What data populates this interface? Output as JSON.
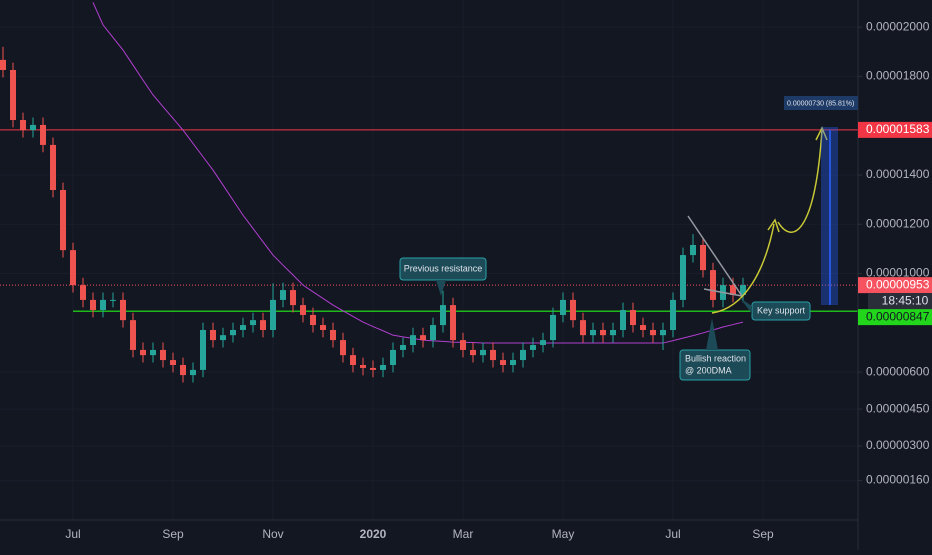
{
  "chart_data": {
    "type": "candlestick",
    "categories": [
      null,
      null,
      null,
      null,
      null,
      null,
      null,
      "Jul",
      null,
      null,
      null,
      null,
      null,
      null,
      null,
      null,
      null,
      "Sep",
      null,
      null,
      null,
      null,
      null,
      null,
      null,
      null,
      null,
      "Nov",
      null,
      null,
      null,
      null,
      null,
      null,
      null,
      null,
      null,
      "2020",
      null,
      null,
      null,
      null,
      null,
      null,
      null,
      null,
      "Mar",
      null,
      null,
      null,
      null,
      null,
      null,
      null,
      null,
      null,
      "May",
      null,
      null,
      null,
      null,
      null,
      null,
      null,
      null,
      null,
      null,
      "Jul",
      null,
      null,
      null,
      null,
      null,
      null,
      null,
      null,
      "Sep",
      null,
      null,
      null,
      null,
      null,
      null,
      null,
      null,
      null
    ],
    "open": [
      1.867e-05,
      1.826e-05,
      1.623e-05,
      1.582e-05,
      1.603e-05,
      1.522e-05,
      1.339e-05,
      1.095e-05,
      9.53e-06,
      8.93e-06,
      8.52e-06,
      8.93e-06,
      8.93e-06,
      8.11e-06,
      6.9e-06,
      6.69e-06,
      6.9e-06,
      6.49e-06,
      6.29e-06,
      5.88e-06,
      6.09e-06,
      7.71e-06,
      7.3e-06,
      7.5e-06,
      7.71e-06,
      7.91e-06,
      8.11e-06,
      7.71e-06,
      8.93e-06,
      9.33e-06,
      8.72e-06,
      8.32e-06,
      7.91e-06,
      7.71e-06,
      7.3e-06,
      6.69e-06,
      6.29e-06,
      6.17e-06,
      6.09e-06,
      6.29e-06,
      6.9e-06,
      7.1e-06,
      7.5e-06,
      7.3e-06,
      7.91e-06,
      8.72e-06,
      7.3e-06,
      6.9e-06,
      6.69e-06,
      6.9e-06,
      6.49e-06,
      6.29e-06,
      6.49e-06,
      6.9e-06,
      7.1e-06,
      7.3e-06,
      8.32e-06,
      8.93e-06,
      8.11e-06,
      7.5e-06,
      7.71e-06,
      7.5e-06,
      7.71e-06,
      8.52e-06,
      7.91e-06,
      7.71e-06,
      7.5e-06,
      7.71e-06,
      8.93e-06,
      1.075e-05,
      1.116e-05,
      1.014e-05,
      8.93e-06,
      9.53e-06,
      9.13e-06,
      null,
      null,
      null,
      null,
      null,
      null,
      null,
      null,
      null,
      null,
      null
    ],
    "high": [
      1.92e-05,
      1.856e-05,
      1.653e-05,
      1.633e-05,
      1.633e-05,
      1.552e-05,
      1.369e-05,
      1.125e-05,
      9.83e-06,
      9.23e-06,
      9.23e-06,
      9.23e-06,
      9.23e-06,
      8.41e-06,
      7.2e-06,
      7.2e-06,
      7.2e-06,
      6.79e-06,
      6.59e-06,
      6.39e-06,
      8.01e-06,
      8.01e-06,
      7.8e-06,
      8.01e-06,
      8.21e-06,
      8.41e-06,
      8.41e-06,
      9.6e-06,
      9.63e-06,
      9.63e-06,
      9.02e-06,
      8.62e-06,
      8.21e-06,
      8.01e-06,
      7.6e-06,
      6.99e-06,
      6.59e-06,
      6.47e-06,
      6.59e-06,
      7.2e-06,
      7.4e-06,
      7.8e-06,
      7.8e-06,
      8.21e-06,
      9.3e-06,
      9.02e-06,
      7.6e-06,
      7.2e-06,
      7.2e-06,
      7.2e-06,
      6.79e-06,
      6.79e-06,
      7.2e-06,
      7.4e-06,
      7.6e-06,
      8.62e-06,
      9.23e-06,
      9.23e-06,
      8.41e-06,
      8.01e-06,
      8.01e-06,
      8.01e-06,
      8.82e-06,
      8.82e-06,
      8.21e-06,
      8.01e-06,
      8.01e-06,
      9.23e-06,
      1.105e-05,
      1.16e-05,
      1.146e-05,
      1.044e-05,
      9.83e-06,
      9.83e-06,
      9.83e-06,
      null,
      null,
      null,
      null,
      null,
      null,
      null,
      null,
      null,
      null,
      null
    ],
    "low": [
      1.796e-05,
      1.593e-05,
      1.552e-05,
      1.552e-05,
      1.492e-05,
      1.309e-05,
      1.065e-05,
      9.23e-06,
      8.63e-06,
      8.22e-06,
      8.22e-06,
      8.63e-06,
      7.81e-06,
      6.6e-06,
      6.39e-06,
      6.39e-06,
      6.19e-06,
      5.99e-06,
      5.58e-06,
      5.58e-06,
      5.79e-06,
      7e-06,
      7e-06,
      7.2e-06,
      7.41e-06,
      7.61e-06,
      7.41e-06,
      7.41e-06,
      8.63e-06,
      8.42e-06,
      8.02e-06,
      7.61e-06,
      7.41e-06,
      7e-06,
      6.39e-06,
      5.99e-06,
      5.87e-06,
      5.79e-06,
      5.79e-06,
      5.99e-06,
      6.6e-06,
      6.8e-06,
      7e-06,
      7e-06,
      7.61e-06,
      7e-06,
      6.6e-06,
      6.39e-06,
      6.39e-06,
      6.19e-06,
      5.99e-06,
      5.99e-06,
      6.19e-06,
      6.6e-06,
      6.8e-06,
      7e-06,
      8.02e-06,
      7.81e-06,
      7.2e-06,
      7.2e-06,
      7.2e-06,
      7.2e-06,
      7.41e-06,
      7.61e-06,
      7.41e-06,
      7.2e-06,
      6.9e-06,
      7.41e-06,
      8.63e-06,
      1.045e-05,
      9.84e-06,
      8.63e-06,
      8.63e-06,
      8.83e-06,
      8.83e-06,
      null,
      null,
      null,
      null,
      null,
      null,
      null,
      null,
      null,
      null,
      null
    ],
    "close": [
      1.826e-05,
      1.623e-05,
      1.582e-05,
      1.603e-05,
      1.522e-05,
      1.339e-05,
      1.095e-05,
      9.53e-06,
      8.93e-06,
      8.52e-06,
      8.93e-06,
      8.93e-06,
      8.11e-06,
      6.9e-06,
      6.69e-06,
      6.9e-06,
      6.49e-06,
      6.29e-06,
      5.88e-06,
      6.09e-06,
      7.71e-06,
      7.3e-06,
      7.5e-06,
      7.71e-06,
      7.91e-06,
      8.11e-06,
      7.71e-06,
      8.93e-06,
      9.33e-06,
      8.72e-06,
      8.32e-06,
      7.91e-06,
      7.71e-06,
      7.3e-06,
      6.69e-06,
      6.29e-06,
      6.17e-06,
      6.09e-06,
      6.29e-06,
      6.9e-06,
      7.1e-06,
      7.5e-06,
      7.3e-06,
      7.91e-06,
      8.72e-06,
      7.3e-06,
      6.9e-06,
      6.69e-06,
      6.9e-06,
      6.49e-06,
      6.29e-06,
      6.49e-06,
      6.9e-06,
      7.1e-06,
      7.3e-06,
      8.32e-06,
      8.93e-06,
      8.11e-06,
      7.5e-06,
      7.71e-06,
      7.5e-06,
      7.71e-06,
      8.52e-06,
      7.91e-06,
      7.71e-06,
      7.5e-06,
      7.71e-06,
      8.93e-06,
      1.075e-05,
      1.116e-05,
      1.014e-05,
      8.93e-06,
      9.53e-06,
      9.13e-06,
      9.53e-06,
      null,
      null,
      null,
      null,
      null,
      null,
      null,
      null,
      null,
      null,
      null
    ],
    "up_color": "#26a69a",
    "down_color": "#ef5350",
    "moving_average": {
      "color": "#b23fd1",
      "values": [
        null,
        null,
        null,
        null,
        null,
        null,
        null,
        null,
        null,
        2.1e-05,
        2.009e-05,
        1.958e-05,
        1.907e-05,
        1.846e-05,
        1.785e-05,
        1.725e-05,
        1.677e-05,
        1.63e-05,
        1.582e-05,
        1.528e-05,
        1.474e-05,
        1.42e-05,
        1.359e-05,
        1.298e-05,
        1.237e-05,
        1.183e-05,
        1.129e-05,
        1.075e-05,
        1.034e-05,
        9.94e-06,
        9.53e-06,
        9.26e-06,
        8.99e-06,
        8.72e-06,
        8.49e-06,
        8.26e-06,
        8.03e-06,
        7.85e-06,
        7.68e-06,
        7.5e-06,
        7.43e-06,
        7.37e-06,
        7.3e-06,
        7.27e-06,
        7.25e-06,
        7.22e-06,
        7.21e-06,
        7.2e-06,
        7.18e-06,
        7.18e-06,
        7.18e-06,
        7.18e-06,
        7.18e-06,
        7.18e-06,
        7.18e-06,
        7.18e-06,
        7.18e-06,
        7.18e-06,
        7.18e-06,
        7.18e-06,
        7.18e-06,
        7.18e-06,
        7.18e-06,
        7.18e-06,
        7.18e-06,
        7.18e-06,
        7.18e-06,
        7.28e-06,
        7.38e-06,
        7.48e-06,
        7.59e-06,
        7.71e-06,
        7.83e-06,
        7.93e-06,
        8.03e-06,
        null,
        null,
        null,
        null,
        null,
        null,
        null,
        null,
        null,
        null,
        null
      ]
    },
    "ylim": [
      0,
      2.11e-05
    ],
    "yticks": [
      {
        "value": 2e-05,
        "label": "0.00002000"
      },
      {
        "value": 1.8e-05,
        "label": "0.00001800"
      },
      {
        "value": 1.4e-05,
        "label": "0.00001400"
      },
      {
        "value": 1.2e-05,
        "label": "0.00001200"
      },
      {
        "value": 1e-05,
        "label": "0.00001000"
      },
      {
        "value": 6e-06,
        "label": "0.00000600"
      },
      {
        "value": 4.5e-06,
        "label": "0.00000450"
      },
      {
        "value": 3e-06,
        "label": "0.00000300"
      },
      {
        "value": 1.6e-06,
        "label": "0.00000160"
      }
    ],
    "grid": true,
    "price_lines": [
      {
        "value": 1.583e-05,
        "label": "0.00001583",
        "color": "#f23645"
      },
      {
        "value": 9.53e-06,
        "label": "0.00000953",
        "color": "#f7525f"
      },
      {
        "value": 8.47e-06,
        "label": "0.00000847",
        "color": "#22d61c"
      }
    ],
    "countdown": "18:45:10",
    "measure_label": "0.00000730 (85.81%)",
    "annotations": [
      "Previous resistance",
      "Key support",
      "Bullish reaction",
      "@ 200DMA"
    ]
  }
}
